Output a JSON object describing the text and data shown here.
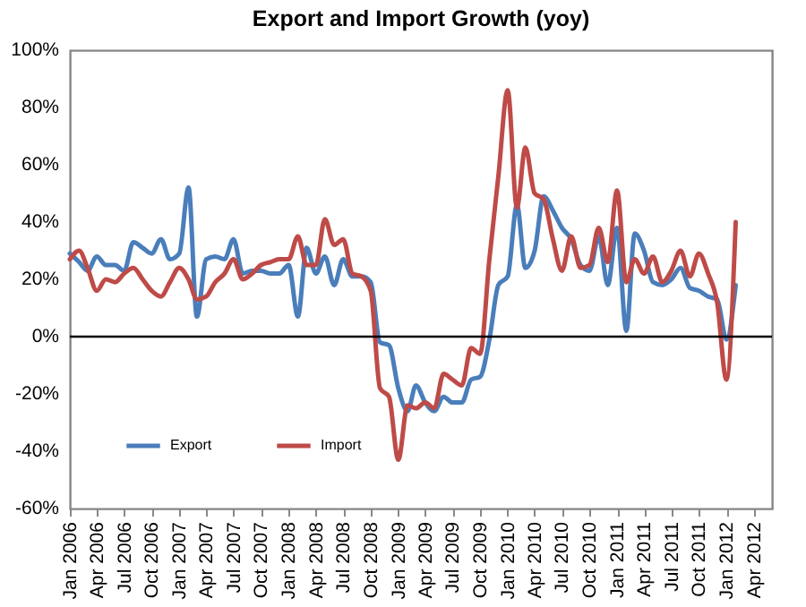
{
  "chart_data": {
    "type": "line",
    "title": "Export and Import Growth (yoy)",
    "x": [
      "2006-01",
      "2006-02",
      "2006-03",
      "2006-04",
      "2006-05",
      "2006-06",
      "2006-07",
      "2006-08",
      "2006-09",
      "2006-10",
      "2006-11",
      "2006-12",
      "2007-01",
      "2007-02",
      "2007-03",
      "2007-04",
      "2007-05",
      "2007-06",
      "2007-07",
      "2007-08",
      "2007-09",
      "2007-10",
      "2007-11",
      "2007-12",
      "2008-01",
      "2008-02",
      "2008-03",
      "2008-04",
      "2008-05",
      "2008-06",
      "2008-07",
      "2008-08",
      "2008-09",
      "2008-10",
      "2008-11",
      "2008-12",
      "2009-01",
      "2009-02",
      "2009-03",
      "2009-04",
      "2009-05",
      "2009-06",
      "2009-07",
      "2009-08",
      "2009-09",
      "2009-10",
      "2009-11",
      "2009-12",
      "2010-01",
      "2010-02",
      "2010-03",
      "2010-04",
      "2010-05",
      "2010-06",
      "2010-07",
      "2010-08",
      "2010-09",
      "2010-10",
      "2010-11",
      "2010-12",
      "2011-01",
      "2011-02",
      "2011-03",
      "2011-04",
      "2011-05",
      "2011-06",
      "2011-07",
      "2011-08",
      "2011-09",
      "2011-10",
      "2011-11",
      "2011-12",
      "2012-01",
      "2012-02"
    ],
    "series": [
      {
        "name": "Export",
        "color": "#4a7ebb",
        "values": [
          29,
          26,
          23,
          28,
          25,
          25,
          23,
          33,
          31,
          29,
          34,
          27,
          29,
          52,
          7,
          27,
          28,
          27,
          34,
          22,
          23,
          23,
          22,
          22,
          25,
          7,
          31,
          22,
          28,
          18,
          27,
          21,
          21,
          19,
          -2,
          -3,
          -18,
          -26,
          -17,
          -23,
          -26,
          -21,
          -23,
          -23,
          -15,
          -14,
          -1,
          18,
          21,
          46,
          24,
          30,
          49,
          44,
          38,
          34,
          25,
          23,
          35,
          18,
          38,
          2,
          36,
          30,
          19,
          18,
          20,
          24,
          17,
          16,
          14,
          13,
          -1,
          18
        ]
      },
      {
        "name": "Import",
        "color": "#be4b48",
        "values": [
          27,
          30,
          24,
          16,
          20,
          19,
          22,
          24,
          20,
          16,
          14,
          19,
          24,
          20,
          13,
          14,
          19,
          22,
          27,
          20,
          22,
          25,
          26,
          27,
          27,
          35,
          25,
          25,
          41,
          32,
          34,
          22,
          21,
          16,
          -18,
          -21,
          -43,
          -24,
          -25,
          -23,
          -25,
          -13,
          -15,
          -17,
          -4,
          -6,
          27,
          56,
          86,
          45,
          66,
          50,
          48,
          34,
          23,
          35,
          24,
          25,
          38,
          26,
          51,
          19,
          27,
          22,
          28,
          19,
          23,
          30,
          21,
          29,
          22,
          12,
          -15,
          40
        ]
      }
    ],
    "xlim": [
      "2006-01",
      "2012-06"
    ],
    "xticks": [
      {
        "value": "2006-01",
        "label": "Jan 2006"
      },
      {
        "value": "2006-04",
        "label": "Apr 2006"
      },
      {
        "value": "2006-07",
        "label": "Jul 2006"
      },
      {
        "value": "2006-10",
        "label": "Oct 2006"
      },
      {
        "value": "2007-01",
        "label": "Jan 2007"
      },
      {
        "value": "2007-04",
        "label": "Apr 2007"
      },
      {
        "value": "2007-07",
        "label": "Jul 2007"
      },
      {
        "value": "2007-10",
        "label": "Oct 2007"
      },
      {
        "value": "2008-01",
        "label": "Jan 2008"
      },
      {
        "value": "2008-04",
        "label": "Apr 2008"
      },
      {
        "value": "2008-07",
        "label": "Jul 2008"
      },
      {
        "value": "2008-10",
        "label": "Oct 2008"
      },
      {
        "value": "2009-01",
        "label": "Jan 2009"
      },
      {
        "value": "2009-04",
        "label": "Apr 2009"
      },
      {
        "value": "2009-07",
        "label": "Jul 2009"
      },
      {
        "value": "2009-10",
        "label": "Oct 2009"
      },
      {
        "value": "2010-01",
        "label": "Jan 2010"
      },
      {
        "value": "2010-04",
        "label": "Apr 2010"
      },
      {
        "value": "2010-07",
        "label": "Jul 2010"
      },
      {
        "value": "2010-10",
        "label": "Oct 2010"
      },
      {
        "value": "2011-01",
        "label": "Jan 2011"
      },
      {
        "value": "2011-04",
        "label": "Apr 2011"
      },
      {
        "value": "2011-07",
        "label": "Jul 2011"
      },
      {
        "value": "2011-10",
        "label": "Oct 2011"
      },
      {
        "value": "2012-01",
        "label": "Jan 2012"
      },
      {
        "value": "2012-04",
        "label": "Apr 2012"
      }
    ],
    "ylim": [
      -60,
      100
    ],
    "yticks": [
      {
        "value": -60,
        "label": "-60%"
      },
      {
        "value": -40,
        "label": "-40%"
      },
      {
        "value": -20,
        "label": "-20%"
      },
      {
        "value": 0,
        "label": "0%"
      },
      {
        "value": 20,
        "label": "20%"
      },
      {
        "value": 40,
        "label": "40%"
      },
      {
        "value": 60,
        "label": "60%"
      },
      {
        "value": 80,
        "label": "80%"
      },
      {
        "value": 100,
        "label": "100%"
      }
    ],
    "ref_lines": [
      {
        "axis": "y",
        "value": 0,
        "color": "#000000"
      }
    ],
    "legend": "bottom left",
    "line_style": "solid"
  }
}
